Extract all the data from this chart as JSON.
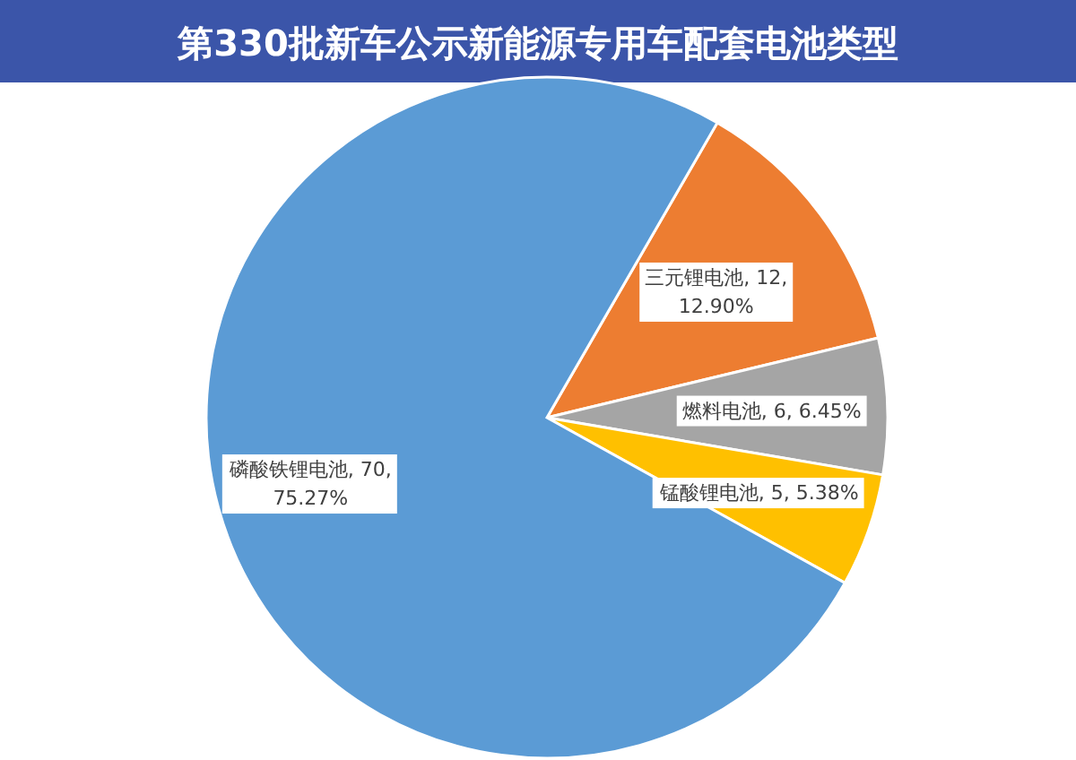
{
  "chart_data": {
    "type": "pie",
    "title": "第330批新车公示新能源专用车配套电池类型",
    "categories": [
      "三元锂电池",
      "燃料电池",
      "锰酸锂电池",
      "磷酸铁锂电池"
    ],
    "values": [
      12,
      6,
      5,
      70
    ],
    "colors": [
      "#ed7d31",
      "#a5a5a5",
      "#ffc000",
      "#5b9bd5"
    ],
    "value_labels": [
      "12, 12.90%",
      "6, 6.45%",
      "5, 5.38%",
      "70, 75.27%"
    ]
  }
}
